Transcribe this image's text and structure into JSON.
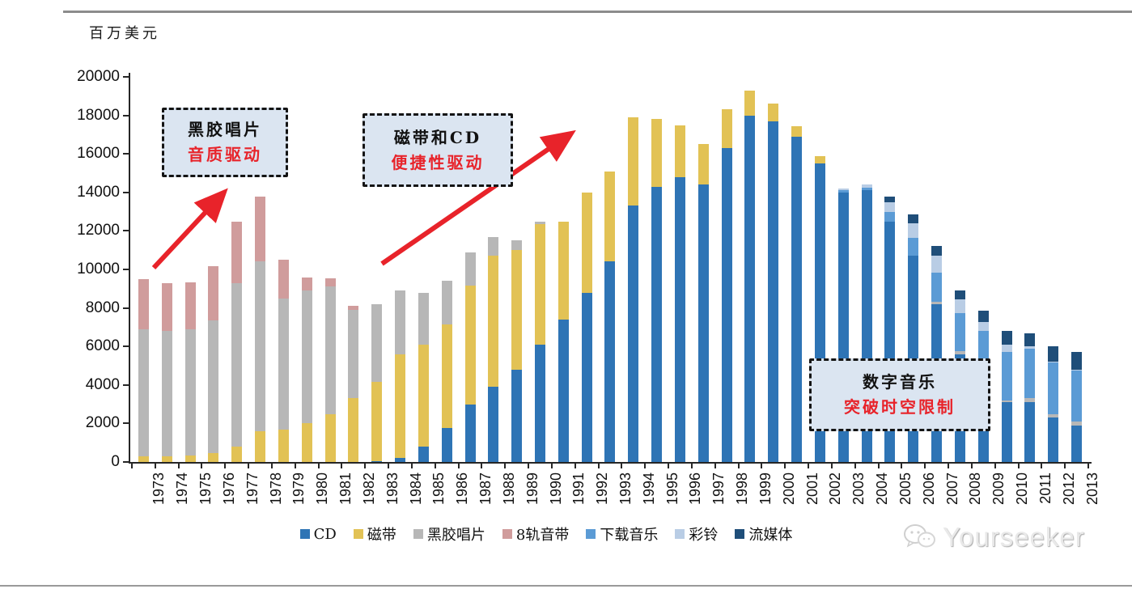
{
  "page": {
    "y_axis_title": "百万美元",
    "watermark": "Yourseeker"
  },
  "annotations": {
    "vinyl": {
      "line1": "黑胶唱片",
      "line2": "音质驱动"
    },
    "cassette_cd": {
      "line1": "磁带和CD",
      "line2": "便捷性驱动"
    },
    "digital": {
      "line1": "数字音乐",
      "line2": "突破时空限制"
    }
  },
  "colors": {
    "accent_red": "#e8232a",
    "annotation_bg": "#dbe5f1",
    "axis": "#262626"
  },
  "chart_data": {
    "type": "bar",
    "stacked": true,
    "ylabel": "百万美元",
    "ylim": [
      0,
      20000
    ],
    "ytick_step": 2000,
    "grid": false,
    "legend_position": "bottom",
    "categories": [
      1973,
      1974,
      1975,
      1976,
      1977,
      1978,
      1979,
      1980,
      1981,
      1982,
      1983,
      1984,
      1985,
      1986,
      1987,
      1988,
      1989,
      1990,
      1991,
      1992,
      1993,
      1994,
      1995,
      1996,
      1997,
      1998,
      1999,
      2000,
      2001,
      2002,
      2003,
      2004,
      2005,
      2006,
      2007,
      2008,
      2009,
      2010,
      2011,
      2012,
      2013
    ],
    "series": [
      {
        "name": "CD",
        "color": "#2E74B5",
        "values": [
          0,
          0,
          0,
          0,
          0,
          0,
          0,
          0,
          0,
          0,
          60,
          200,
          800,
          1750,
          3000,
          3900,
          4800,
          6100,
          7400,
          8800,
          10400,
          13300,
          14300,
          14800,
          14400,
          16300,
          18000,
          17700,
          16900,
          15500,
          14000,
          14100,
          12500,
          10700,
          8200,
          5600,
          4300,
          3100,
          3100,
          2300,
          1900
        ]
      },
      {
        "name": "磁带",
        "color": "#E2C255",
        "values": [
          300,
          300,
          350,
          450,
          800,
          1600,
          1700,
          2000,
          2500,
          3300,
          4100,
          5400,
          5300,
          5400,
          6150,
          6800,
          6200,
          6250,
          5100,
          5200,
          4700,
          4600,
          3500,
          2700,
          2100,
          2000,
          1300,
          900,
          550,
          400,
          0,
          0,
          0,
          0,
          0,
          0,
          0,
          0,
          0,
          0,
          0
        ]
      },
      {
        "name": "黑胶唱片",
        "color": "#B7B7B7",
        "values": [
          6600,
          6500,
          6550,
          6900,
          8500,
          8800,
          6800,
          6900,
          6600,
          4600,
          4040,
          3300,
          2700,
          2250,
          1750,
          1000,
          500,
          150,
          0,
          0,
          0,
          0,
          0,
          0,
          0,
          0,
          0,
          0,
          0,
          0,
          0,
          0,
          0,
          0,
          100,
          150,
          100,
          100,
          200,
          200,
          200
        ]
      },
      {
        "name": "8轨音带",
        "color": "#D09C9C",
        "values": [
          2600,
          2500,
          2450,
          2800,
          3200,
          3400,
          2000,
          700,
          450,
          200,
          0,
          0,
          0,
          0,
          0,
          0,
          0,
          0,
          0,
          0,
          0,
          0,
          0,
          0,
          0,
          0,
          0,
          0,
          0,
          0,
          0,
          0,
          0,
          0,
          0,
          0,
          0,
          0,
          0,
          0,
          0
        ]
      },
      {
        "name": "下载音乐",
        "color": "#5B9BD5",
        "values": [
          0,
          0,
          0,
          0,
          0,
          0,
          0,
          0,
          0,
          0,
          0,
          0,
          0,
          0,
          0,
          0,
          0,
          0,
          0,
          0,
          0,
          0,
          0,
          0,
          0,
          0,
          0,
          0,
          0,
          0,
          100,
          150,
          500,
          950,
          1550,
          2000,
          2400,
          2500,
          2600,
          2650,
          2650
        ]
      },
      {
        "name": "彩铃",
        "color": "#B9CDE5",
        "values": [
          0,
          0,
          0,
          0,
          0,
          0,
          0,
          0,
          0,
          0,
          0,
          0,
          0,
          0,
          0,
          0,
          0,
          0,
          0,
          0,
          0,
          0,
          0,
          0,
          0,
          0,
          0,
          0,
          0,
          0,
          100,
          150,
          500,
          750,
          850,
          700,
          450,
          400,
          100,
          50,
          50
        ]
      },
      {
        "name": "流媒体",
        "color": "#1F4E79",
        "values": [
          0,
          0,
          0,
          0,
          0,
          0,
          0,
          0,
          0,
          0,
          0,
          0,
          0,
          0,
          0,
          0,
          0,
          0,
          0,
          0,
          0,
          0,
          0,
          0,
          0,
          0,
          0,
          0,
          0,
          0,
          0,
          0,
          300,
          450,
          500,
          450,
          600,
          700,
          700,
          800,
          900
        ]
      }
    ]
  }
}
